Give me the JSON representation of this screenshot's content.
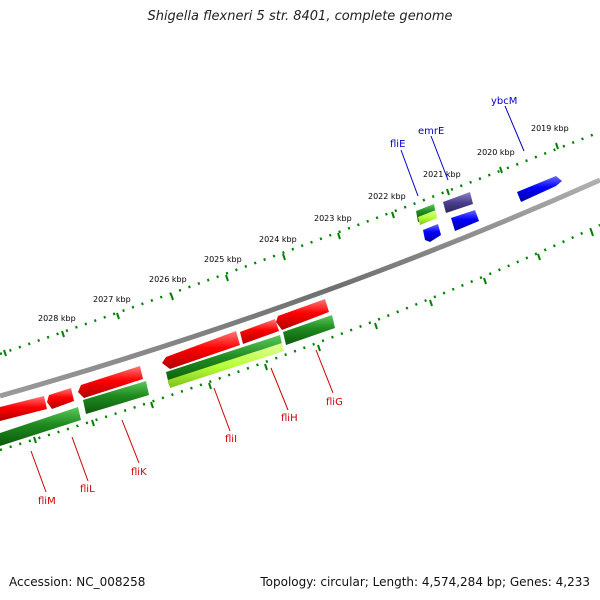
{
  "title": "Shigella flexneri 5 str. 8401, complete genome",
  "footer": {
    "accession": "Accession: NC_008258",
    "stats": "Topology: circular; Length: 4,574,284 bp; Genes: 4,233"
  },
  "kbp_labels": [
    "2019 kbp",
    "2020 kbp",
    "2021 kbp",
    "2022 kbp",
    "2023 kbp",
    "2024 kbp",
    "2025 kbp",
    "2026 kbp",
    "2027 kbp",
    "2028 kbp"
  ],
  "gene_labels": {
    "ybcM": "ybcM",
    "emrE": "emrE",
    "fliE": "fliE",
    "fliG": "fliG",
    "fliH": "fliH",
    "fliI": "fliI",
    "fliK": "fliK",
    "fliL": "fliL",
    "fliM": "fliM"
  },
  "colors": {
    "backbone": "#808080",
    "tick": "#008000",
    "blue_gene": "#0000ff",
    "purple_gene": "#4a3f8f",
    "red_gene": "#ff0000",
    "green_gene": "#1f8a1f",
    "lime_gene": "#b8ff3a",
    "blue_label": "#0000cc",
    "red_label": "#cc0000"
  }
}
